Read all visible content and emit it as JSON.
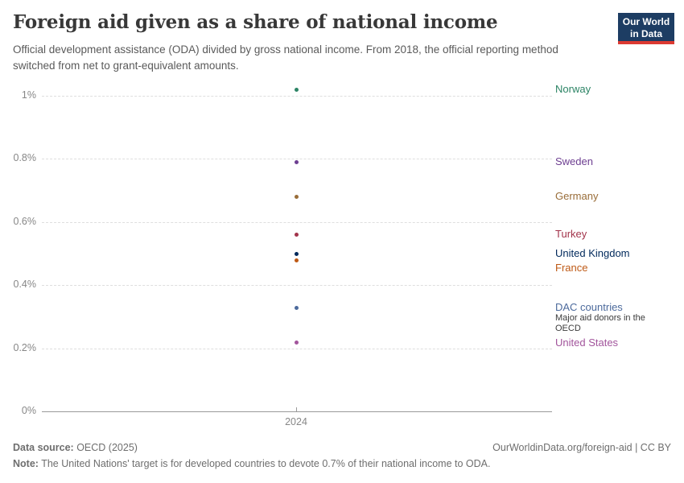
{
  "header": {
    "title": "Foreign aid given as a share of national income",
    "subtitle": "Official development assistance (ODA) divided by gross national income. From 2018, the official reporting method switched from net to grant-equivalent amounts.",
    "logo": {
      "line1": "Our World",
      "line2": "in Data",
      "bg_color": "#1d3d63",
      "accent_color": "#dc3a32"
    }
  },
  "chart_data": {
    "type": "scatter",
    "title": "Foreign aid given as a share of national income",
    "x": [
      2024
    ],
    "x_tick_label": "2024",
    "xlabel": "",
    "ylabel": "",
    "ylim": [
      0,
      1.05
    ],
    "grid": true,
    "legend_position": "right-entity-labels",
    "yticks": [
      {
        "value": 0,
        "label": "0%"
      },
      {
        "value": 0.2,
        "label": "0.2%"
      },
      {
        "value": 0.4,
        "label": "0.4%"
      },
      {
        "value": 0.6,
        "label": "0.6%"
      },
      {
        "value": 0.8,
        "label": "0.8%"
      },
      {
        "value": 1.0,
        "label": "1%"
      }
    ],
    "series": [
      {
        "name": "Norway",
        "values": [
          1.02
        ],
        "color": "#2C8465"
      },
      {
        "name": "Sweden",
        "values": [
          0.79
        ],
        "color": "#6D3E91"
      },
      {
        "name": "Germany",
        "values": [
          0.68
        ],
        "color": "#996D39"
      },
      {
        "name": "Turkey",
        "values": [
          0.56
        ],
        "color": "#A2344B"
      },
      {
        "name": "United Kingdom",
        "values": [
          0.5
        ],
        "color": "#00295B"
      },
      {
        "name": "France",
        "values": [
          0.48
        ],
        "color": "#BE5915"
      },
      {
        "name": "DAC countries",
        "values": [
          0.33
        ],
        "color": "#4C6A9C",
        "annotation": "Major aid donors in the OECD"
      },
      {
        "name": "United States",
        "values": [
          0.22
        ],
        "color": "#A2559C"
      }
    ]
  },
  "footer": {
    "source_label": "Data source:",
    "source_value": " OECD (2025)",
    "link": "OurWorldinData.org/foreign-aid | CC BY",
    "note_label": "Note:",
    "note_value": " The United Nations' target is for developed countries to devote 0.7% of their national income to ODA."
  }
}
